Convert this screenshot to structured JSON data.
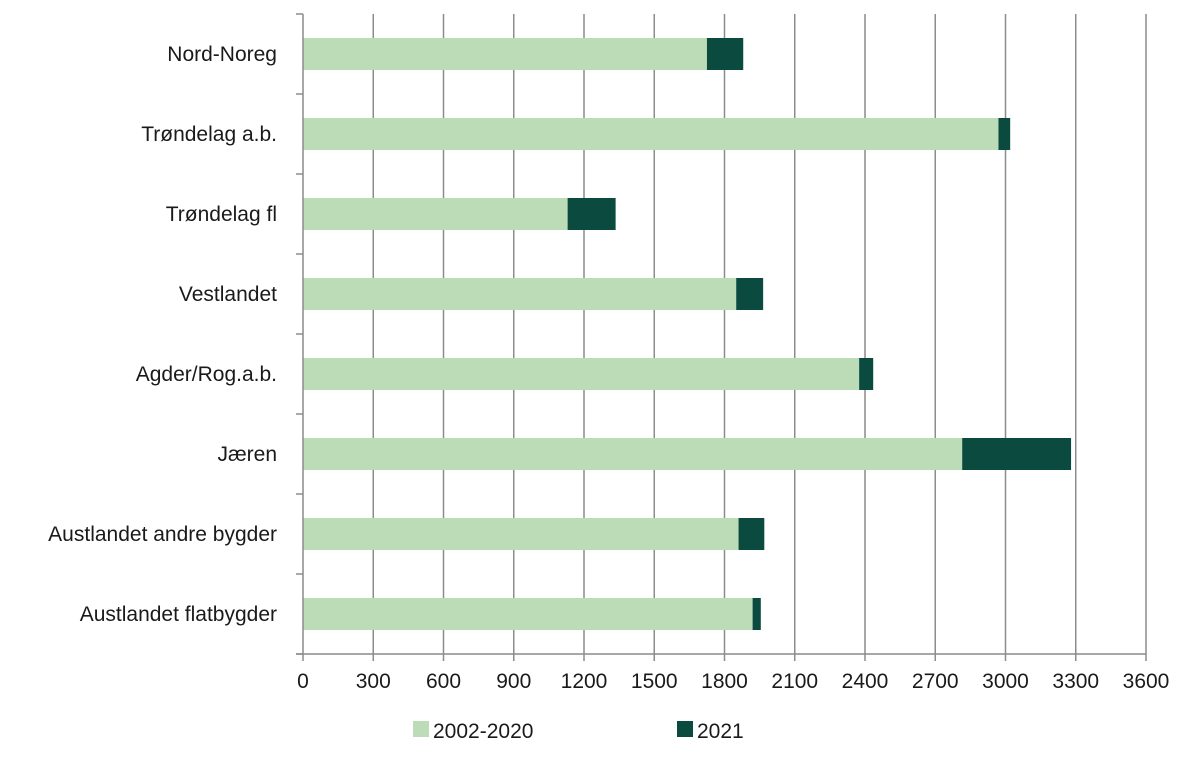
{
  "chart_data": {
    "type": "bar",
    "orientation": "horizontal",
    "stacked": true,
    "categories": [
      "Nord-Noreg",
      "Trøndelag a.b.",
      "Trøndelag fl",
      "Vestlandet",
      "Agder/Rog.a.b.",
      "Jæren",
      "Austlandet andre bygder",
      "Austlandet flatbygder"
    ],
    "series": [
      {
        "name": "2002-2020",
        "color": "#bcdcb8",
        "values": [
          1725,
          2970,
          1130,
          1850,
          2375,
          2815,
          1860,
          1920
        ]
      },
      {
        "name": "2021",
        "color": "#0b4a3e",
        "values": [
          155,
          50,
          205,
          115,
          60,
          465,
          110,
          35
        ]
      }
    ],
    "xlim": [
      0,
      3600
    ],
    "xticks": [
      "0",
      "300",
      "600",
      "900",
      "1200",
      "1500",
      "1800",
      "2100",
      "2400",
      "2700",
      "3000",
      "3300",
      "3600"
    ],
    "grid": "vertical",
    "legend": "bottom",
    "title": "",
    "xlabel": "",
    "ylabel": ""
  }
}
